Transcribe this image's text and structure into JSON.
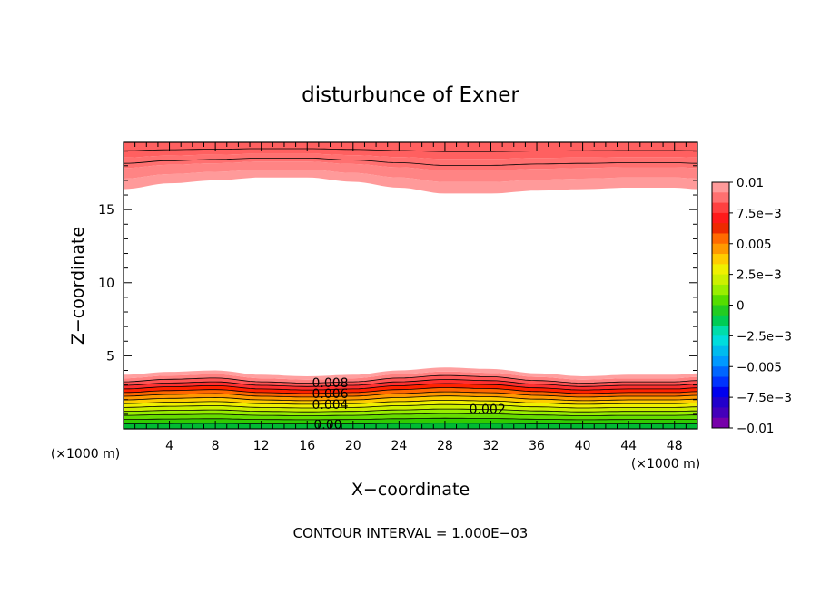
{
  "chart_data": {
    "type": "contour",
    "title": "disturbunce of Exner",
    "xlabel": "X−coordinate",
    "ylabel": "Z−coordinate",
    "x_unit_left": "(×1000 m)",
    "x_unit_right": "(×1000 m)",
    "footer": "CONTOUR INTERVAL = 1.000E−03",
    "xlim": [
      0,
      50
    ],
    "ylim": [
      0,
      19.6
    ],
    "x_ticks": [
      4,
      8,
      12,
      16,
      20,
      24,
      28,
      32,
      36,
      40,
      44,
      48
    ],
    "x_tick_labels": [
      "4",
      "8",
      "12",
      "16",
      "20",
      "24",
      "28",
      "32",
      "36",
      "40",
      "44",
      "48"
    ],
    "y_ticks": [
      5,
      10,
      15
    ],
    "y_tick_labels": [
      "5",
      "10",
      "15"
    ],
    "contour_interval": 0.001,
    "contour_labels": [
      {
        "text": "0.008",
        "x": 18.0,
        "z": 2.85
      },
      {
        "text": "0.006",
        "x": 18.0,
        "z": 2.1
      },
      {
        "text": "0.004",
        "x": 18.0,
        "z": 1.35
      },
      {
        "text": "0.002",
        "x": 31.7,
        "z": 1.05
      },
      {
        "text": "0.00",
        "x": 17.8,
        "z": 0.0
      }
    ],
    "lower_layer": {
      "description_hidden": false,
      "x": [
        0,
        4,
        8,
        12,
        16,
        20,
        24,
        28,
        32,
        36,
        40,
        44,
        48,
        50
      ],
      "top_z": [
        3.7,
        3.9,
        4.0,
        3.7,
        3.6,
        3.7,
        4.0,
        4.2,
        4.1,
        3.8,
        3.6,
        3.7,
        3.7,
        3.8
      ]
    },
    "upper_layer": {
      "x": [
        0,
        4,
        8,
        12,
        16,
        20,
        24,
        28,
        32,
        36,
        40,
        44,
        48,
        50
      ],
      "bottom_z": [
        16.4,
        16.8,
        17.0,
        17.2,
        17.2,
        16.9,
        16.5,
        16.1,
        16.1,
        16.3,
        16.4,
        16.5,
        16.5,
        16.4
      ]
    },
    "colorbar": {
      "labels": [
        "0.01",
        "7.5e−3",
        "0.005",
        "2.5e−3",
        "0",
        "−2.5e−3",
        "−0.005",
        "−7.5e−3",
        "−0.01"
      ],
      "values": [
        0.01,
        0.0075,
        0.005,
        0.0025,
        0,
        -0.0025,
        -0.005,
        -0.0075,
        -0.01
      ],
      "colors_top_to_bottom": [
        "#ff9a9a",
        "#ff7070",
        "#ff4040",
        "#ff1a1a",
        "#ee2a00",
        "#ff6a00",
        "#ff9900",
        "#ffcc00",
        "#f0f000",
        "#ccf000",
        "#99ee00",
        "#55dd00",
        "#22cc22",
        "#00cc55",
        "#00ddaa",
        "#00dddd",
        "#00bbee",
        "#0099ff",
        "#0066ff",
        "#0033ff",
        "#0000ee",
        "#2200cc",
        "#4400bb",
        "#7700aa"
      ]
    }
  }
}
